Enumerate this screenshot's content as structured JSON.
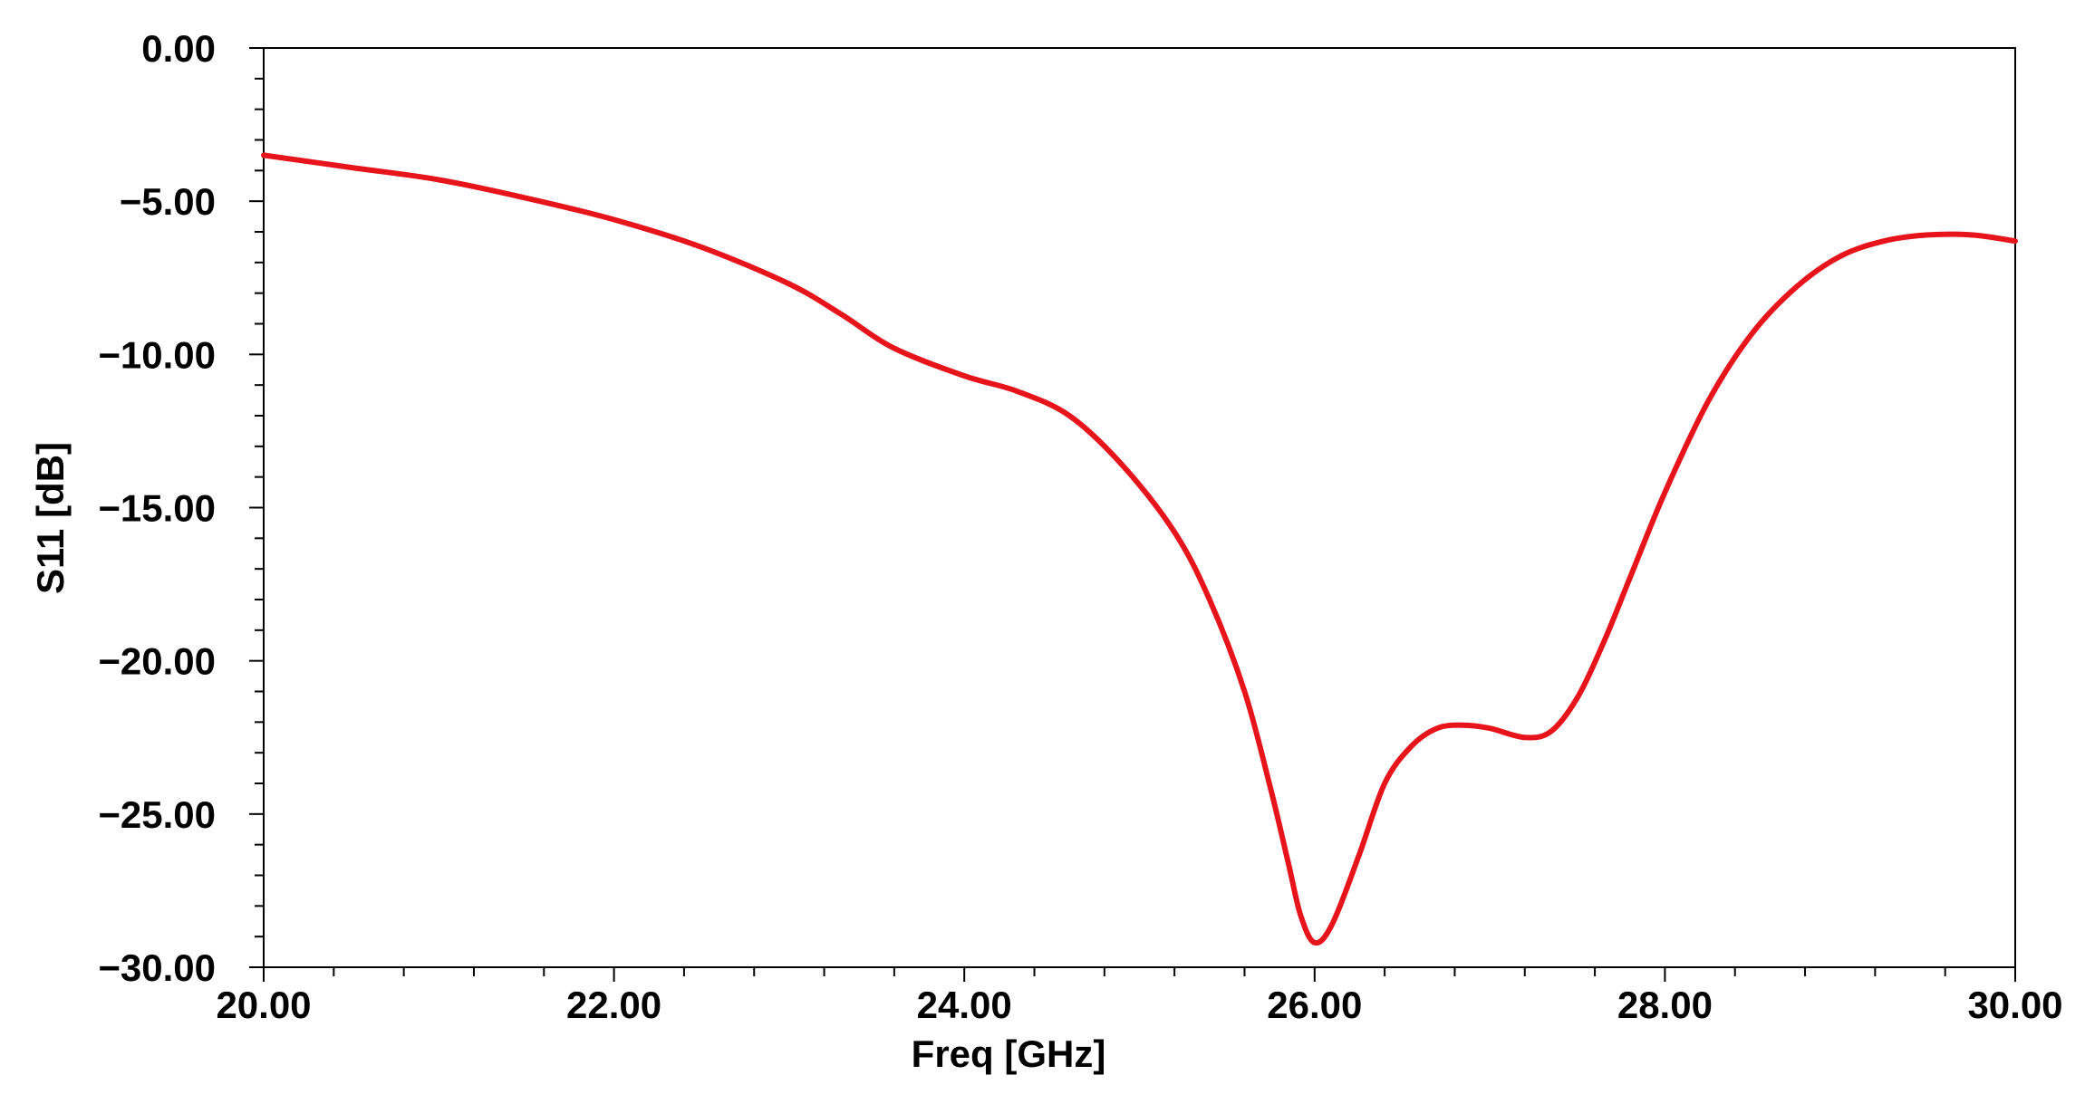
{
  "chart_data": {
    "type": "line",
    "title": "",
    "xlabel": "Freq [GHz]",
    "ylabel": "S11 [dB]",
    "xlim": [
      20,
      30
    ],
    "ylim": [
      -30,
      0
    ],
    "x_ticks": [
      "20.00",
      "22.00",
      "24.00",
      "26.00",
      "28.00",
      "30.00"
    ],
    "y_ticks": [
      "0.00",
      "−5.00",
      "−10.00",
      "−15.00",
      "−20.00",
      "−25.00",
      "−30.00"
    ],
    "grid": false,
    "legend": "none",
    "series": [
      {
        "color": "#e8141c",
        "x": [
          20.0,
          20.5,
          21.0,
          21.5,
          22.0,
          22.5,
          23.0,
          23.3,
          23.6,
          24.0,
          24.3,
          24.6,
          24.9,
          25.2,
          25.4,
          25.6,
          25.75,
          25.85,
          25.92,
          26.0,
          26.1,
          26.25,
          26.4,
          26.55,
          26.7,
          26.85,
          27.0,
          27.2,
          27.35,
          27.5,
          27.65,
          27.8,
          28.0,
          28.25,
          28.5,
          28.75,
          29.0,
          29.25,
          29.5,
          29.75,
          30.0
        ],
        "y": [
          -3.5,
          -3.9,
          -4.3,
          -4.9,
          -5.6,
          -6.5,
          -7.7,
          -8.7,
          -9.8,
          -10.7,
          -11.2,
          -12.0,
          -13.6,
          -15.8,
          -18.0,
          -21.0,
          -24.2,
          -26.6,
          -28.3,
          -29.2,
          -28.6,
          -26.4,
          -24.0,
          -22.8,
          -22.2,
          -22.1,
          -22.2,
          -22.5,
          -22.3,
          -21.2,
          -19.4,
          -17.3,
          -14.5,
          -11.5,
          -9.3,
          -7.8,
          -6.8,
          -6.3,
          -6.1,
          -6.1,
          -6.3
        ]
      }
    ]
  }
}
